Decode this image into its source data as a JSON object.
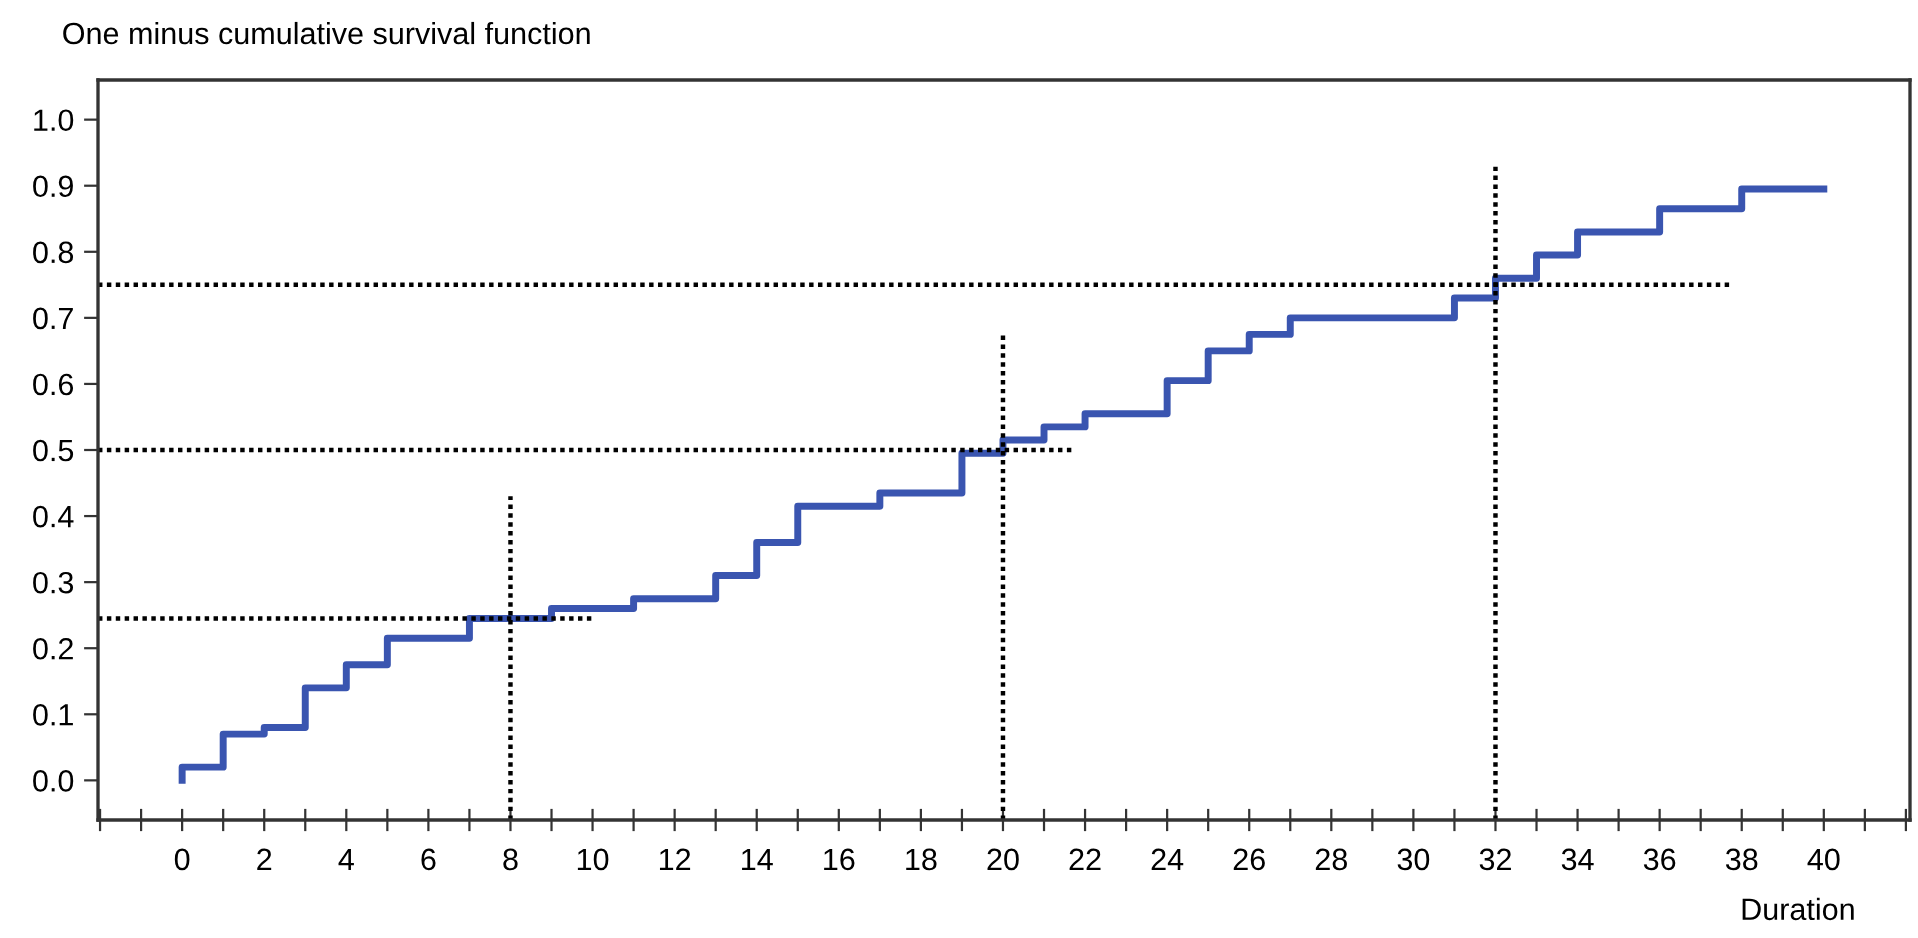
{
  "chart_data": {
    "type": "step",
    "ylabel": "One minus cumulative survival function",
    "xlabel": "Duration",
    "xlim": [
      -2.05,
      42.1
    ],
    "ylim": [
      -0.06,
      1.06
    ],
    "xticks": [
      {
        "value": -2,
        "label": null
      },
      {
        "value": -1,
        "label": null
      },
      0,
      {
        "value": 1,
        "label": null
      },
      2,
      {
        "value": 3,
        "label": null
      },
      4,
      {
        "value": 5,
        "label": null
      },
      6,
      {
        "value": 7,
        "label": null
      },
      8,
      {
        "value": 9,
        "label": null
      },
      10,
      {
        "value": 11,
        "label": null
      },
      12,
      {
        "value": 13,
        "label": null
      },
      14,
      {
        "value": 15,
        "label": null
      },
      16,
      {
        "value": 17,
        "label": null
      },
      18,
      {
        "value": 19,
        "label": null
      },
      20,
      {
        "value": 21,
        "label": null
      },
      22,
      {
        "value": 23,
        "label": null
      },
      24,
      {
        "value": 25,
        "label": null
      },
      26,
      {
        "value": 27,
        "label": null
      },
      28,
      {
        "value": 29,
        "label": null
      },
      30,
      {
        "value": 31,
        "label": null
      },
      32,
      {
        "value": 33,
        "label": null
      },
      34,
      {
        "value": 35,
        "label": null
      },
      36,
      {
        "value": 37,
        "label": null
      },
      38,
      {
        "value": 39,
        "label": null
      },
      40,
      {
        "value": 41,
        "label": null
      },
      {
        "value": 42,
        "label": null
      }
    ],
    "yticks": [
      {
        "value": 0,
        "label": "0.0"
      },
      {
        "value": 0.1,
        "label": "0.1"
      },
      {
        "value": 0.2,
        "label": "0.2"
      },
      {
        "value": 0.3,
        "label": "0.3"
      },
      {
        "value": 0.4,
        "label": "0.4"
      },
      {
        "value": 0.5,
        "label": "0.5"
      },
      {
        "value": 0.6,
        "label": "0.6"
      },
      {
        "value": 0.7,
        "label": "0.7"
      },
      {
        "value": 0.8,
        "label": "0.8"
      },
      {
        "value": 0.9,
        "label": "0.9"
      },
      {
        "value": 1.0,
        "label": "1.0"
      }
    ],
    "grid": false,
    "legend": false,
    "series": [
      {
        "color": "#3a55b0",
        "line_style": "solid",
        "x": [
          0,
          0,
          1,
          2,
          3,
          4,
          5,
          7,
          9,
          11,
          13,
          14,
          15,
          17,
          19,
          20,
          21,
          22,
          24,
          25,
          26,
          27,
          31,
          32,
          33,
          34,
          36,
          38,
          40
        ],
        "values": [
          0,
          0.02,
          0.07,
          0.08,
          0.14,
          0.175,
          0.215,
          0.245,
          0.26,
          0.275,
          0.31,
          0.36,
          0.415,
          0.435,
          0.495,
          0.515,
          0.535,
          0.555,
          0.605,
          0.65,
          0.675,
          0.7,
          0.73,
          0.76,
          0.795,
          0.83,
          0.865,
          0.895,
          0.895
        ]
      },
      {
        "type": "line",
        "color": "#000000",
        "line_style": "dotted",
        "x": [
          -2.05,
          10
        ],
        "values": [
          0.245,
          0.245
        ]
      },
      {
        "type": "line",
        "color": "#000000",
        "line_style": "dotted",
        "x": [
          -2.05,
          21.7
        ],
        "values": [
          0.5,
          0.5
        ]
      },
      {
        "type": "line",
        "color": "#000000",
        "line_style": "dotted",
        "x": [
          -2.05,
          37.7
        ],
        "values": [
          0.75,
          0.75
        ]
      },
      {
        "type": "line",
        "color": "#000000",
        "line_style": "dotted",
        "x": [
          8,
          8
        ],
        "values": [
          -0.06,
          0.43
        ]
      },
      {
        "type": "line",
        "color": "#000000",
        "line_style": "dotted",
        "x": [
          20,
          20
        ],
        "values": [
          -0.06,
          0.68
        ]
      },
      {
        "type": "line",
        "color": "#000000",
        "line_style": "dotted",
        "x": [
          32,
          32
        ],
        "values": [
          -0.06,
          0.93
        ]
      }
    ]
  }
}
